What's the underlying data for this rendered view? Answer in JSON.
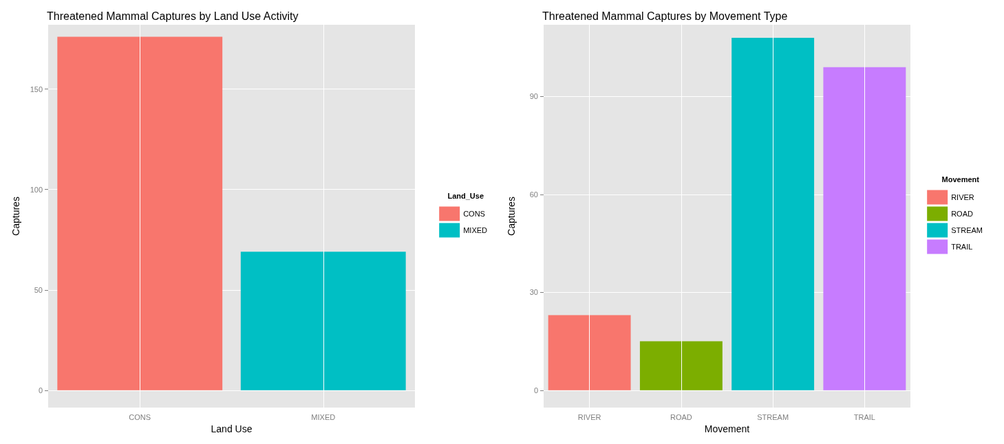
{
  "chart_data": [
    {
      "type": "bar",
      "title": "Threatened Mammal Captures by Land Use Activity",
      "xlabel": "Land Use",
      "ylabel": "Captures",
      "legend_title": "Land_Use",
      "categories": [
        "CONS",
        "MIXED"
      ],
      "series": [
        {
          "name": "CONS",
          "color": "#f8766d",
          "values": [
            176,
            null
          ]
        },
        {
          "name": "MIXED",
          "color": "#00bfc4",
          "values": [
            null,
            69
          ]
        }
      ],
      "ylim": [
        -8.6,
        182
      ],
      "yticks": [
        0,
        50,
        100,
        150
      ],
      "grid": true,
      "legend": "right"
    },
    {
      "type": "bar",
      "title": "Threatened Mammal Captures by Movement Type",
      "xlabel": "Movement",
      "ylabel": "Captures",
      "legend_title": "Movement",
      "categories": [
        "RIVER",
        "ROAD",
        "STREAM",
        "TRAIL"
      ],
      "series": [
        {
          "name": "RIVER",
          "color": "#f8766d",
          "values": [
            23,
            null,
            null,
            null
          ]
        },
        {
          "name": "ROAD",
          "color": "#7cae00",
          "values": [
            null,
            15,
            null,
            null
          ]
        },
        {
          "name": "STREAM",
          "color": "#00bfc4",
          "values": [
            null,
            null,
            108,
            null
          ]
        },
        {
          "name": "TRAIL",
          "color": "#c77cff",
          "values": [
            null,
            null,
            null,
            99
          ]
        }
      ],
      "ylim": [
        -5.3,
        112
      ],
      "yticks": [
        0,
        30,
        60,
        90
      ],
      "grid": true,
      "legend": "right"
    }
  ]
}
